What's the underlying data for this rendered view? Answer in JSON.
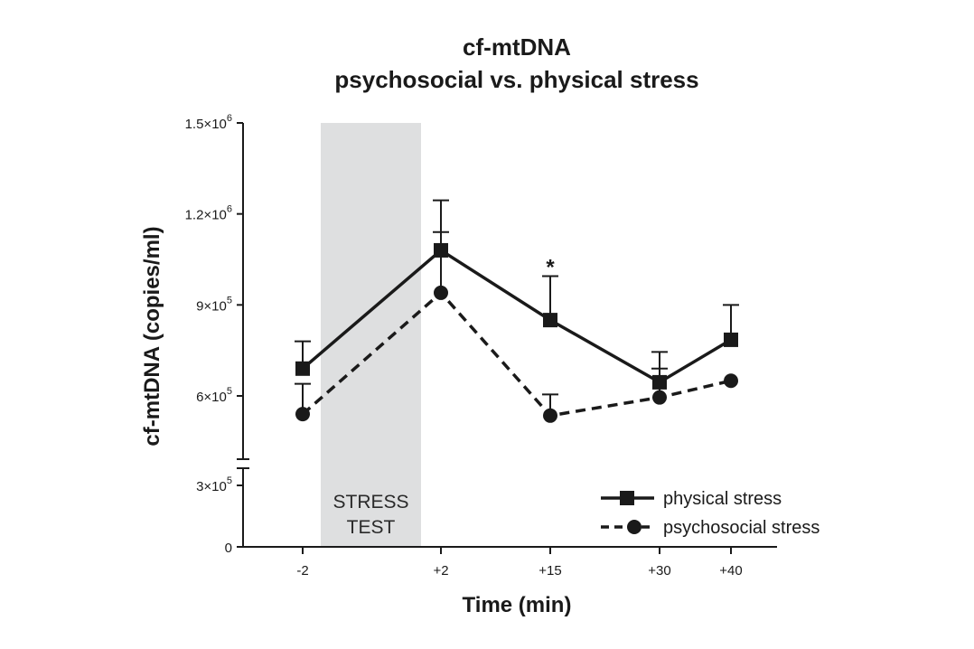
{
  "chart_data": {
    "type": "line",
    "title": "cf-mtDNA",
    "subtitle": "psychosocial vs. physical stress",
    "xlabel": "Time (min)",
    "ylabel": "cf-mtDNA (copies/ml)",
    "x_categories": [
      "-2",
      "+2",
      "+15",
      "+30",
      "+40"
    ],
    "ylim": [
      0,
      1500000
    ],
    "y_break": [
      0,
      300000
    ],
    "y_ticks": [
      {
        "value": 0,
        "label": "0",
        "mant": "",
        "exp": ""
      },
      {
        "value": 300000,
        "label": "3×10^5",
        "mant": "3×10",
        "exp": "5"
      },
      {
        "value": 600000,
        "label": "6×10^5",
        "mant": "6×10",
        "exp": "5"
      },
      {
        "value": 900000,
        "label": "9×10^5",
        "mant": "9×10",
        "exp": "5"
      },
      {
        "value": 1200000,
        "label": "1.2×10^6",
        "mant": "1.2×10",
        "exp": "6"
      },
      {
        "value": 1500000,
        "label": "1.5×10^6",
        "mant": "1.5×10",
        "exp": "6"
      }
    ],
    "shaded_region": {
      "label_line1": "STRESS",
      "label_line2": "TEST",
      "from": "-2",
      "to": "+2",
      "color": "#dedfe0"
    },
    "series": [
      {
        "name": "physical stress",
        "marker": "square",
        "line_style": "solid",
        "values": [
          690000,
          1080000,
          850000,
          645000,
          785000
        ],
        "error_upper": [
          780000,
          1245000,
          995000,
          745000,
          900000
        ]
      },
      {
        "name": "psychosocial stress",
        "marker": "circle",
        "line_style": "dashed",
        "values": [
          540000,
          940000,
          535000,
          595000,
          650000
        ],
        "error_upper": [
          640000,
          1140000,
          605000,
          690000,
          650000
        ]
      }
    ],
    "annotations": [
      {
        "text": "*",
        "x": "+15"
      }
    ],
    "legend_position": "bottom-right",
    "grid": false,
    "color": "#1a1a1a"
  }
}
